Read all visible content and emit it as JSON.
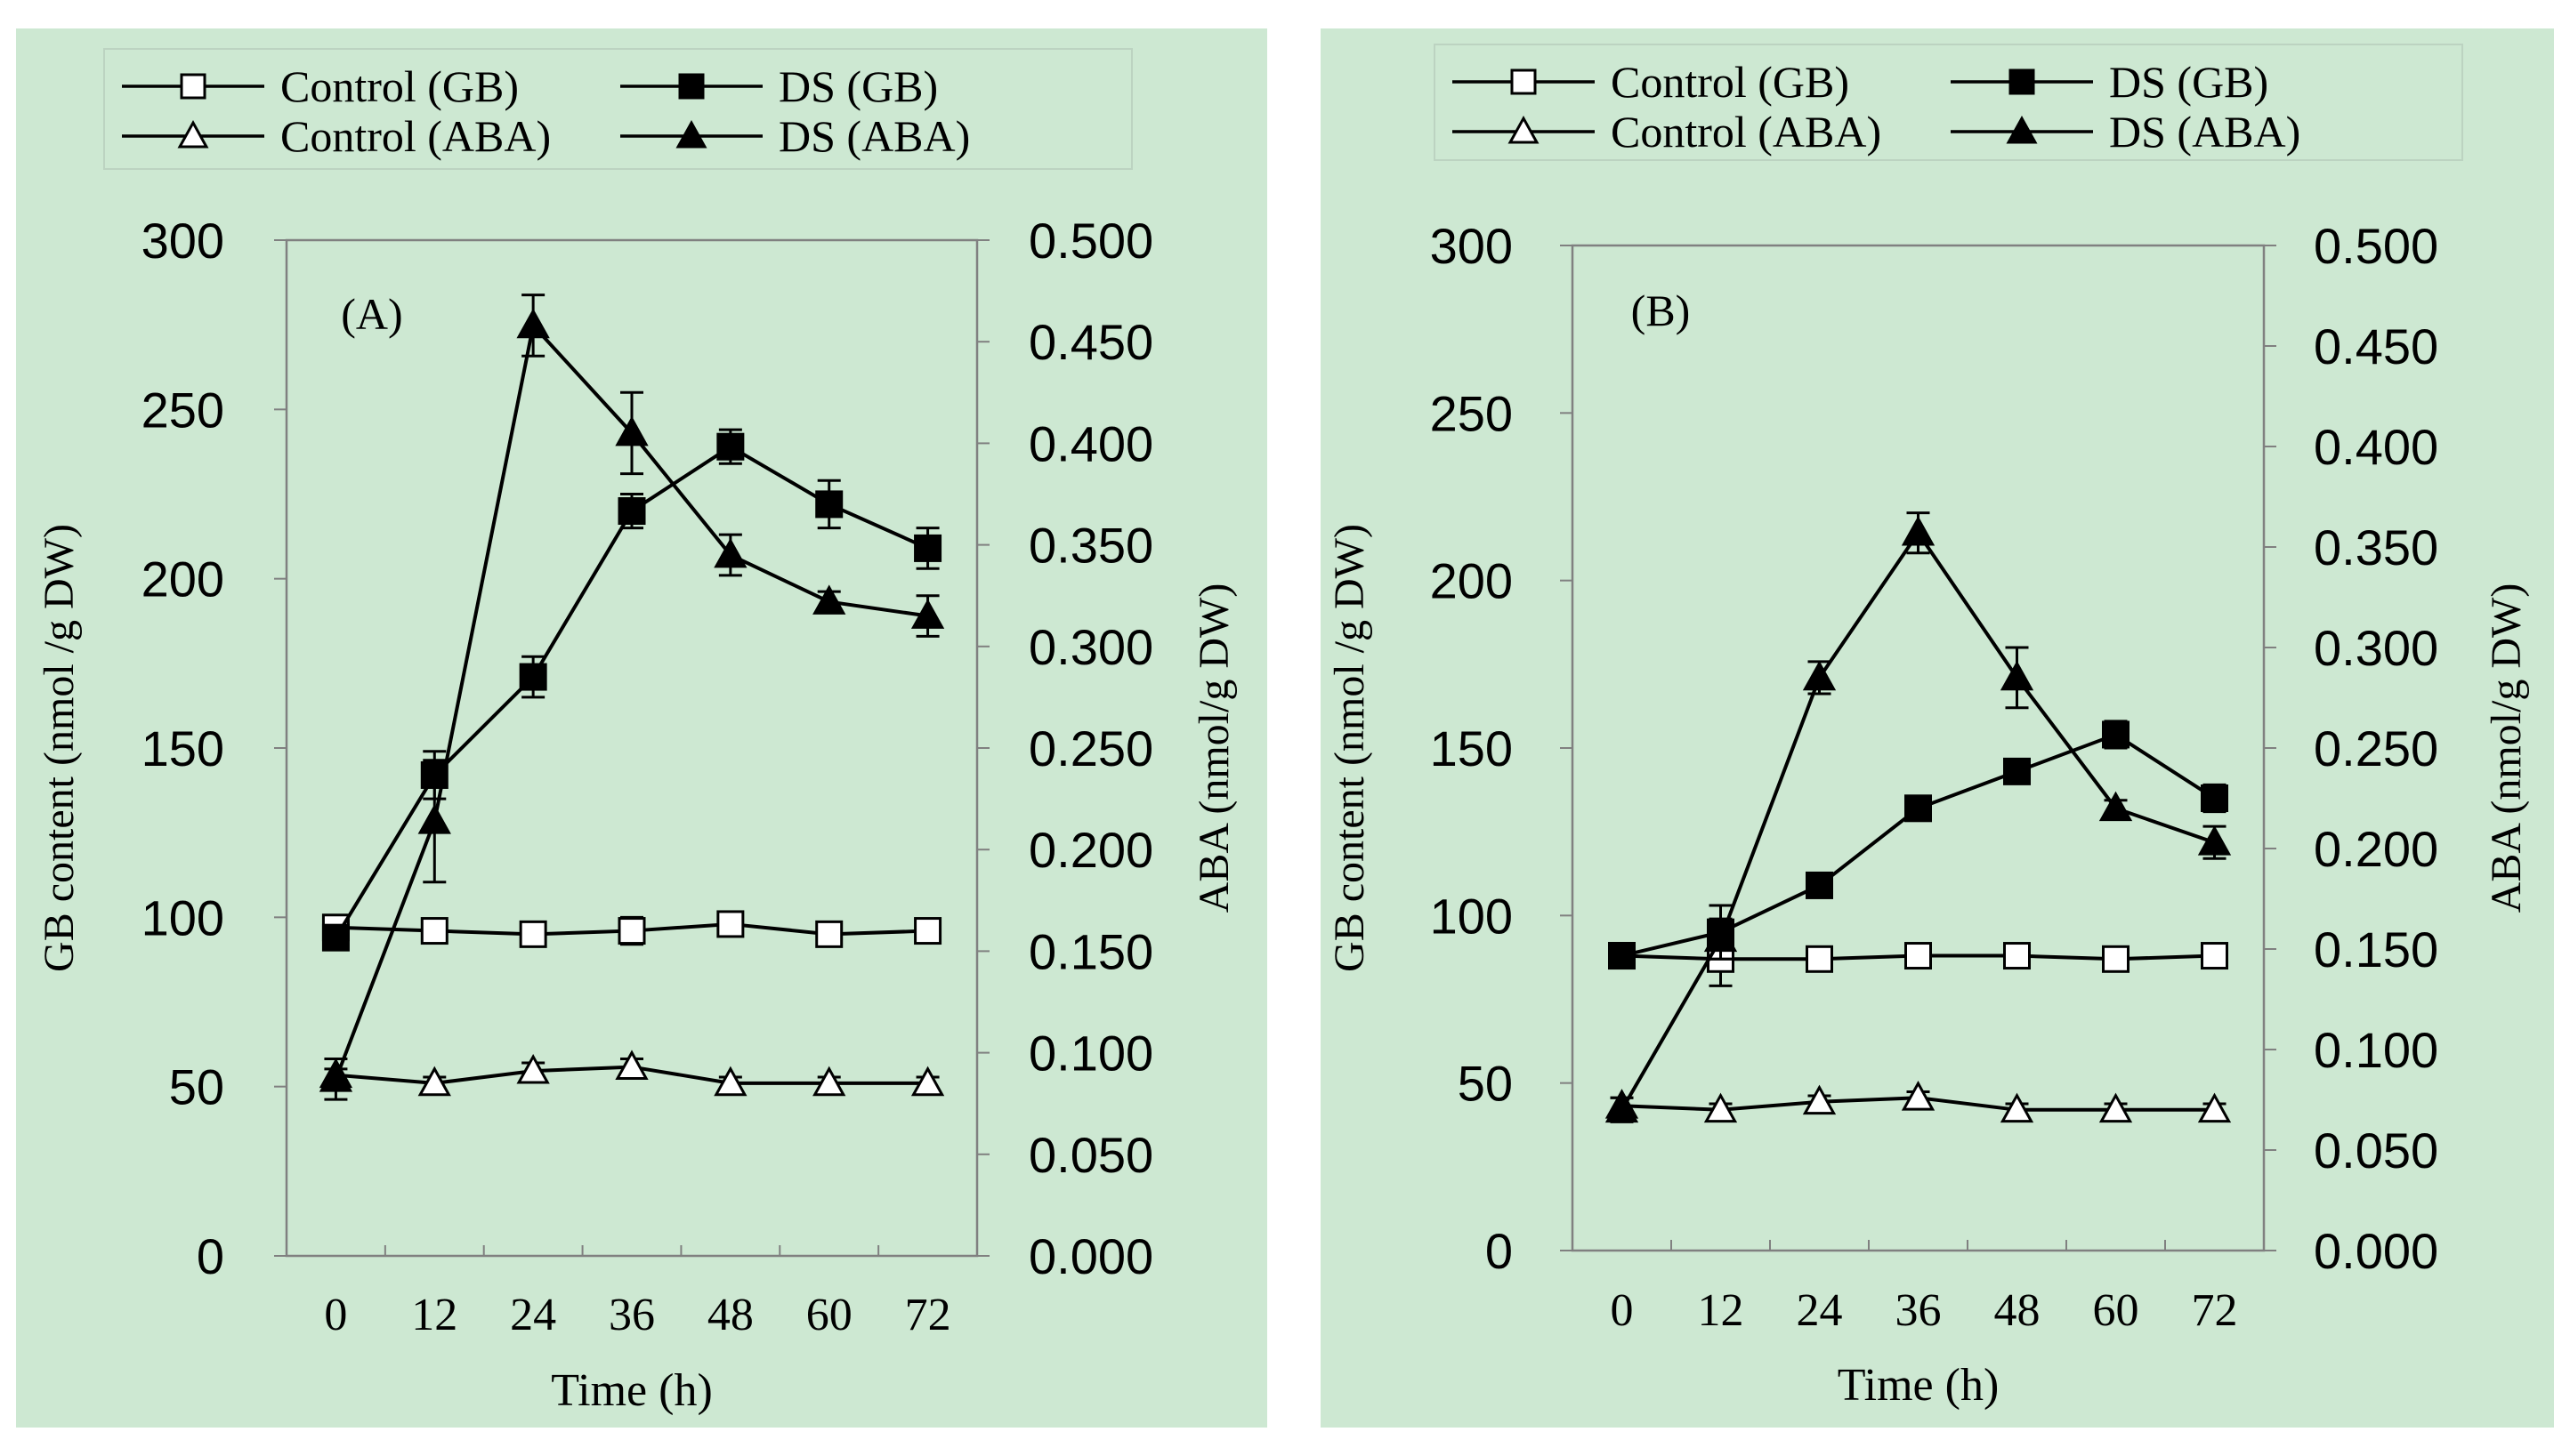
{
  "colors": {
    "panel_background": "#cde8d2",
    "plot_background": "#cde8d2",
    "line": "#000000",
    "open_marker_fill": "#ffffff",
    "filled_marker_fill": "#000000"
  },
  "legend": {
    "control_gb": "Control (GB)",
    "ds_gb": "DS (GB)",
    "control_aba": "Control (ABA)",
    "ds_aba": "DS (ABA)"
  },
  "chart_data": [
    {
      "type": "line",
      "panel_label": "(A)",
      "xlabel": "Time (h)",
      "ylabel_left": "GB content (nmol /g DW)",
      "ylabel_right": "ABA (nmol/g DW)",
      "x": [
        0,
        12,
        24,
        36,
        48,
        60,
        72
      ],
      "x_tick_labels": [
        "0",
        "12",
        "24",
        "36",
        "48",
        "60",
        "72"
      ],
      "ylim_left": [
        0,
        300
      ],
      "y_ticks_left": [
        "0",
        "50",
        "100",
        "150",
        "200",
        "250",
        "300"
      ],
      "ylim_right": [
        0,
        0.5
      ],
      "y_ticks_right": [
        "0.000",
        "0.050",
        "0.100",
        "0.150",
        "0.200",
        "0.250",
        "0.300",
        "0.350",
        "0.400",
        "0.450",
        "0.500"
      ],
      "series": [
        {
          "name": "Control (GB)",
          "axis": "left",
          "marker": "square",
          "filled": false,
          "values": [
            97,
            96,
            95,
            96,
            98,
            95,
            96
          ],
          "errors": [
            3,
            2,
            3,
            4,
            3,
            2,
            2
          ]
        },
        {
          "name": "DS (GB)",
          "axis": "left",
          "marker": "square",
          "filled": true,
          "values": [
            94,
            142,
            171,
            220,
            239,
            222,
            209
          ],
          "errors": [
            3,
            7,
            6,
            5,
            5,
            7,
            6
          ]
        },
        {
          "name": "Control (ABA)",
          "axis": "right",
          "marker": "triangle",
          "filled": false,
          "values": [
            0.089,
            0.085,
            0.091,
            0.093,
            0.085,
            0.085,
            0.085
          ],
          "errors": [
            0.003,
            0.003,
            0.004,
            0.004,
            0.003,
            0.003,
            0.003
          ]
        },
        {
          "name": "DS (ABA)",
          "axis": "right",
          "marker": "triangle",
          "filled": true,
          "values": [
            0.087,
            0.214,
            0.458,
            0.405,
            0.345,
            0.322,
            0.315
          ],
          "errors": [
            0.01,
            0.03,
            0.015,
            0.02,
            0.01,
            0.005,
            0.01
          ]
        }
      ]
    },
    {
      "type": "line",
      "panel_label": "(B)",
      "xlabel": "Time (h)",
      "ylabel_left": "GB content (nmol /g DW)",
      "ylabel_right": "ABA (nmol/g DW)",
      "x": [
        0,
        12,
        24,
        36,
        48,
        60,
        72
      ],
      "x_tick_labels": [
        "0",
        "12",
        "24",
        "36",
        "48",
        "60",
        "72"
      ],
      "ylim_left": [
        0,
        300
      ],
      "y_ticks_left": [
        "0",
        "50",
        "100",
        "150",
        "200",
        "250",
        "300"
      ],
      "ylim_right": [
        0,
        0.5
      ],
      "y_ticks_right": [
        "0.000",
        "0.050",
        "0.100",
        "0.150",
        "0.200",
        "0.250",
        "0.300",
        "0.350",
        "0.400",
        "0.450",
        "0.500"
      ],
      "series": [
        {
          "name": "Control (GB)",
          "axis": "left",
          "marker": "square",
          "filled": false,
          "values": [
            88,
            87,
            87,
            88,
            88,
            87,
            88
          ],
          "errors": [
            2,
            8,
            2,
            2,
            2,
            2,
            2
          ]
        },
        {
          "name": "DS (GB)",
          "axis": "left",
          "marker": "square",
          "filled": true,
          "values": [
            88,
            95,
            109,
            132,
            143,
            154,
            135
          ],
          "errors": [
            2,
            8,
            2,
            3,
            3,
            4,
            4
          ]
        },
        {
          "name": "Control (ABA)",
          "axis": "right",
          "marker": "triangle",
          "filled": false,
          "values": [
            0.072,
            0.07,
            0.074,
            0.076,
            0.07,
            0.07,
            0.07
          ],
          "errors": [
            0.004,
            0.003,
            0.003,
            0.003,
            0.003,
            0.003,
            0.003
          ]
        },
        {
          "name": "DS (ABA)",
          "axis": "right",
          "marker": "triangle",
          "filled": true,
          "values": [
            0.07,
            0.155,
            0.285,
            0.357,
            0.285,
            0.22,
            0.203
          ],
          "errors": [
            0.006,
            0.01,
            0.008,
            0.01,
            0.015,
            0.004,
            0.008
          ]
        }
      ]
    }
  ]
}
